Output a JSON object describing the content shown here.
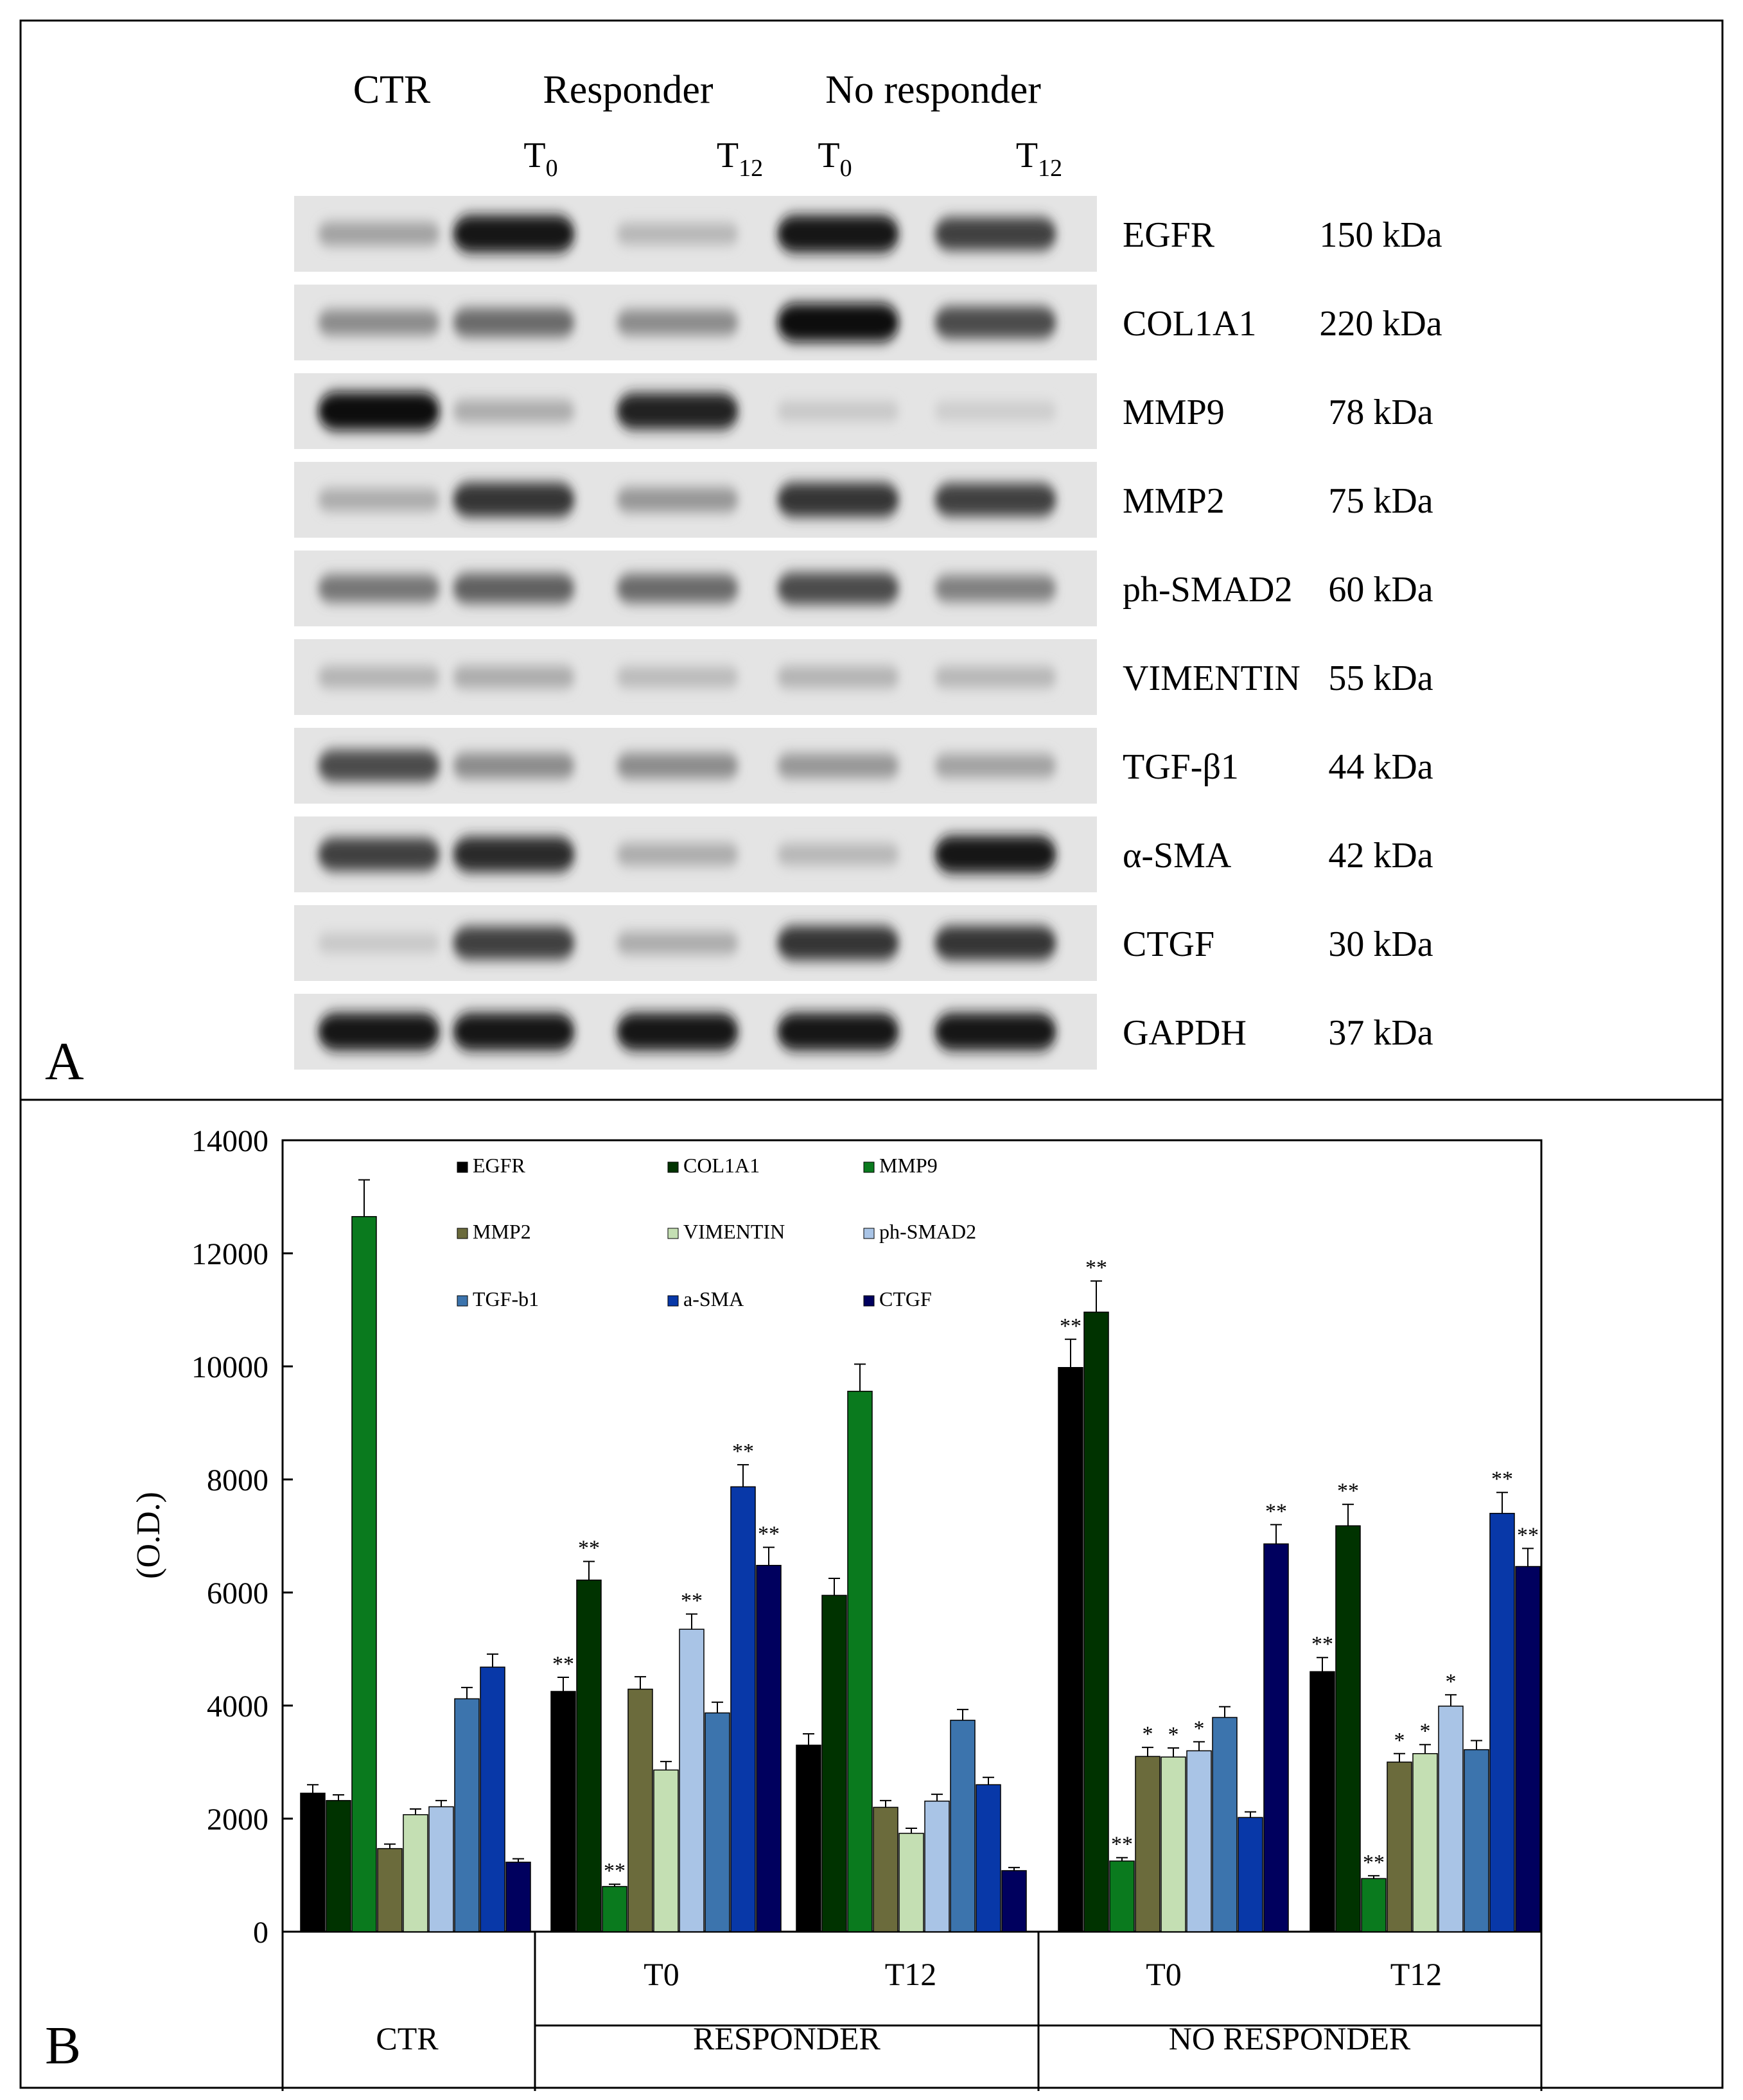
{
  "panel_a": {
    "label": "A",
    "groups": [
      {
        "label": "CTR"
      },
      {
        "label": "Responder"
      },
      {
        "label": "No responder"
      }
    ],
    "timepoints": [
      {
        "base": "T",
        "sub": "0"
      },
      {
        "base": "T",
        "sub": "12"
      },
      {
        "base": "T",
        "sub": "0"
      },
      {
        "base": "T",
        "sub": "12"
      }
    ],
    "blots": [
      {
        "name": "EGFR",
        "kda": "150 kDa",
        "intensity": [
          0.3,
          0.95,
          0.2,
          0.95,
          0.75
        ]
      },
      {
        "name": "COL1A1",
        "kda": "220 kDa",
        "intensity": [
          0.4,
          0.55,
          0.4,
          1.0,
          0.7
        ]
      },
      {
        "name": "MMP9",
        "kda": "78 kDa",
        "intensity": [
          1.0,
          0.25,
          0.9,
          0.12,
          0.1
        ]
      },
      {
        "name": "MMP2",
        "kda": "75 kDa",
        "intensity": [
          0.25,
          0.8,
          0.35,
          0.8,
          0.75
        ]
      },
      {
        "name": "ph-SMAD2",
        "kda": "60 kDa",
        "intensity": [
          0.5,
          0.6,
          0.55,
          0.7,
          0.45
        ]
      },
      {
        "name": "VIMENTIN",
        "kda": "55 kDa",
        "intensity": [
          0.22,
          0.25,
          0.18,
          0.22,
          0.2
        ]
      },
      {
        "name": "TGF-β1",
        "kda": "44 kDa",
        "intensity": [
          0.7,
          0.4,
          0.4,
          0.35,
          0.3
        ]
      },
      {
        "name": "α-SMA",
        "kda": "42 kDa",
        "intensity": [
          0.75,
          0.85,
          0.25,
          0.2,
          0.95
        ]
      },
      {
        "name": "CTGF",
        "kda": "30 kDa",
        "intensity": [
          0.12,
          0.75,
          0.25,
          0.8,
          0.8
        ]
      },
      {
        "name": "GAPDH",
        "kda": "37 kDa",
        "intensity": [
          0.95,
          0.95,
          0.95,
          0.95,
          0.95
        ]
      }
    ]
  },
  "chart_data": {
    "type": "bar",
    "panel_label": "B",
    "ylabel": "(O.D.)",
    "ylim": [
      0,
      14000
    ],
    "yticks": [
      "0",
      "2000",
      "4000",
      "6000",
      "8000",
      "10000",
      "12000",
      "14000"
    ],
    "grid": false,
    "legend_position": "top-inside",
    "categories": [
      "CTR",
      "RESPONDER T0",
      "RESPONDER T12",
      "NO RESPONDER T0",
      "NO RESPONDER T12"
    ],
    "subcategory_labels": [
      "",
      "T0",
      "T12",
      "T0",
      "T12"
    ],
    "group_labels": [
      {
        "label": "CTR",
        "span": [
          0,
          0
        ]
      },
      {
        "label": "RESPONDER",
        "span": [
          1,
          2
        ]
      },
      {
        "label": "NO RESPONDER",
        "span": [
          3,
          4
        ]
      }
    ],
    "series": [
      {
        "name": "EGFR",
        "color": "#000000",
        "values": [
          2450,
          4250,
          3300,
          9980,
          4600
        ],
        "errors": [
          150,
          250,
          200,
          500,
          250
        ],
        "marks": [
          "",
          "**",
          "",
          "**",
          "**"
        ]
      },
      {
        "name": "COL1A1",
        "color": "#003300",
        "values": [
          2320,
          6220,
          5950,
          10960,
          7180
        ],
        "errors": [
          100,
          330,
          300,
          550,
          380
        ],
        "marks": [
          "",
          "**",
          "",
          "**",
          "**"
        ]
      },
      {
        "name": "MMP9",
        "color": "#0a7a1e",
        "values": [
          12650,
          800,
          9560,
          1250,
          940
        ],
        "errors": [
          650,
          40,
          480,
          60,
          50
        ],
        "marks": [
          "",
          "**",
          "",
          "**",
          "**"
        ]
      },
      {
        "name": "MMP2",
        "color": "#6b6b3c",
        "values": [
          1470,
          4290,
          2200,
          3100,
          3000
        ],
        "errors": [
          80,
          220,
          120,
          160,
          150
        ],
        "marks": [
          "",
          "",
          "",
          "*",
          "*"
        ]
      },
      {
        "name": "VIMENTIN",
        "color": "#c4dfb3",
        "values": [
          2070,
          2860,
          1740,
          3090,
          3150
        ],
        "errors": [
          100,
          150,
          90,
          160,
          160
        ],
        "marks": [
          "",
          "",
          "",
          "*",
          "*"
        ]
      },
      {
        "name": "ph-SMAD2",
        "color": "#a9c4e6",
        "values": [
          2210,
          5350,
          2310,
          3200,
          3990
        ],
        "errors": [
          110,
          270,
          120,
          160,
          200
        ],
        "marks": [
          "",
          "**",
          "",
          "*",
          "*"
        ]
      },
      {
        "name": "TGF-b1",
        "color": "#3c74ad",
        "values": [
          4120,
          3870,
          3740,
          3790,
          3220
        ],
        "errors": [
          200,
          190,
          190,
          190,
          160
        ],
        "marks": [
          "",
          "",
          "",
          "",
          ""
        ]
      },
      {
        "name": "a-SMA",
        "color": "#0838a8",
        "values": [
          4680,
          7870,
          2600,
          2020,
          7400
        ],
        "errors": [
          230,
          390,
          130,
          100,
          370
        ],
        "marks": [
          "",
          "**",
          "",
          "",
          "**"
        ]
      },
      {
        "name": "CTGF",
        "color": "#00005e",
        "values": [
          1230,
          6480,
          1080,
          6860,
          6460
        ],
        "errors": [
          60,
          320,
          55,
          340,
          320
        ],
        "marks": [
          "",
          "**",
          "",
          "**",
          "**"
        ]
      }
    ]
  }
}
